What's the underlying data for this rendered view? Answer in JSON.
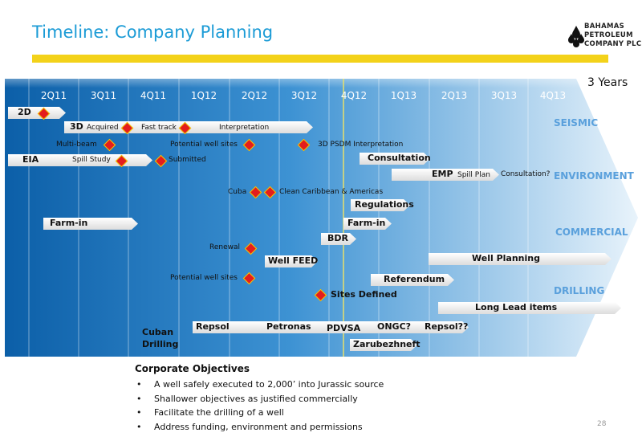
{
  "title": "Timeline: Company Planning",
  "logo": {
    "line1": "BAHAMAS",
    "line2": "PETROLEUM",
    "line3": "COMPANY PLC."
  },
  "horizon": "3 Years",
  "quarters": [
    "2Q11",
    "3Q11",
    "4Q11",
    "1Q12",
    "2Q12",
    "3Q12",
    "4Q12",
    "1Q13",
    "2Q13",
    "3Q13",
    "4Q13"
  ],
  "categories": {
    "seismic": "SEISMIC",
    "environment": "ENVIRONMENT",
    "commercial": "COMMERCIAL",
    "drilling": "DRILLING"
  },
  "seismic": {
    "two_d": "2D",
    "three_d": "3D",
    "acquired": "Acquired",
    "fast_track": "Fast track",
    "interpretation": "Interpretation",
    "multi_beam": "Multi-beam",
    "potential_well_sites": "Potential well sites",
    "psdm": "3D PSDM Interpretation"
  },
  "environment": {
    "eia": "EIA",
    "spill_study": "Spill Study",
    "submitted": "Submitted",
    "consultation": "Consultation",
    "emp": "EMP",
    "spill_plan": "Spill Plan",
    "consultation_q": "Consultation?",
    "cuba": "Cuba",
    "clean_caribbean": "Clean Caribbean & Americas",
    "regulations": "Regulations"
  },
  "commercial": {
    "farm_in_1": "Farm-in",
    "farm_in_2": "Farm-in",
    "bdr": "BDR"
  },
  "drilling": {
    "renewal": "Renewal",
    "well_feed": "Well FEED",
    "well_planning": "Well Planning",
    "potential_well_sites": "Potential well sites",
    "referendum": "Referendum",
    "sites_defined": "Sites Defined",
    "long_lead": "Long Lead items",
    "cuban_drilling": "Cuban Drilling",
    "repsol": "Repsol",
    "petronas": "Petronas",
    "pdvsa": "PDVSA",
    "ongc": "ONGC?",
    "repsol_q": "Repsol??",
    "zarubezhneft": "Zarubezhneft"
  },
  "objectives": {
    "title": "Corporate Objectives",
    "items": [
      "A well safely executed to 2,000’ into Jurassic source",
      "Shallower objectives as justified commercially",
      "Facilitate the drilling of a well",
      "Address funding, environment and permissions"
    ]
  },
  "page_number": "28",
  "colors": {
    "accent": "#1b9bd6",
    "yellow": "#f3d21a",
    "milestone": "#e41d1d",
    "arrow_dark": "#0c5fa8",
    "arrow_light": "#cfe5f5"
  }
}
